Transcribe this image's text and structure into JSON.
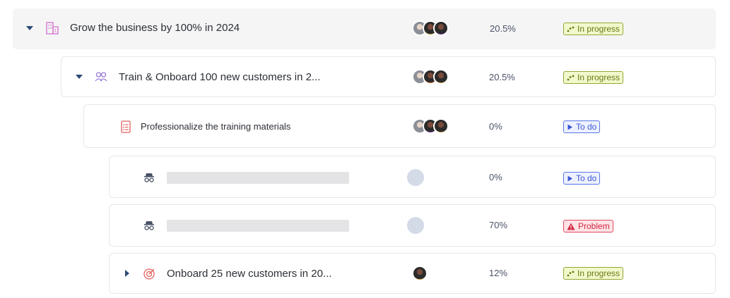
{
  "rows": [
    {
      "title": "Grow the business by 100% in 2024",
      "icon": "building-icon",
      "percent": "20.5%",
      "status": "In progress"
    },
    {
      "title": "Train & Onboard 100 new customers in 2...",
      "icon": "team-icon",
      "percent": "20.5%",
      "status": "In progress"
    },
    {
      "title": "Professionalize the training materials",
      "icon": "document-list-icon",
      "percent": "0%",
      "status": "To do"
    },
    {
      "title": "",
      "icon": "incognito-icon",
      "percent": "0%",
      "status": "To do"
    },
    {
      "title": "",
      "icon": "incognito-icon",
      "percent": "70%",
      "status": "Problem"
    },
    {
      "title": "Onboard 25 new customers in 20...",
      "icon": "target-icon",
      "percent": "12%",
      "status": "In progress"
    }
  ],
  "colors": {
    "in_progress": "#6b7a12",
    "to_do": "#3b57d4",
    "problem": "#d22740"
  }
}
